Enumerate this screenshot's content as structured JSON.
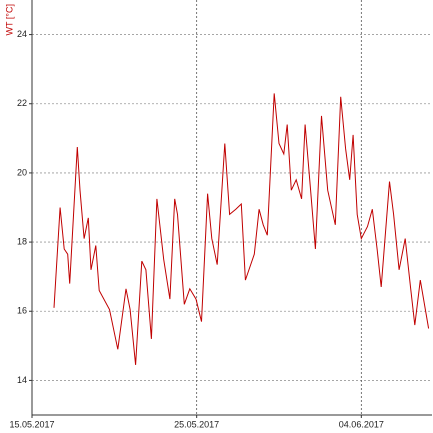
{
  "chart_data": {
    "type": "line",
    "y_label": "WT [°C]",
    "x": [
      "2017-05-16T08:00",
      "2017-05-16T17:00",
      "2017-05-16T23:00",
      "2017-05-17T04:00",
      "2017-05-17T07:00",
      "2017-05-17T18:00",
      "2017-05-17T22:00",
      "2017-05-18T04:00",
      "2017-05-18T10:00",
      "2017-05-18T14:00",
      "2017-05-18T21:00",
      "2017-05-19T02:00",
      "2017-05-19T17:00",
      "2017-05-20T05:00",
      "2017-05-20T17:00",
      "2017-05-20T23:00",
      "2017-05-21T07:00",
      "2017-05-21T16:00",
      "2017-05-21T22:00",
      "2017-05-22T06:00",
      "2017-05-22T14:00",
      "2017-05-23T00:00",
      "2017-05-23T09:00",
      "2017-05-23T16:00",
      "2017-05-23T20:00",
      "2017-05-24T06:00",
      "2017-05-24T14:00",
      "2017-05-24T23:00",
      "2017-05-25T07:00",
      "2017-05-25T16:00",
      "2017-05-25T22:00",
      "2017-05-26T06:00",
      "2017-05-26T17:00",
      "2017-05-27T00:00",
      "2017-05-27T09:00",
      "2017-05-27T17:00",
      "2017-05-27T23:00",
      "2017-05-28T12:00",
      "2017-05-28T19:00",
      "2017-05-29T01:00",
      "2017-05-29T07:00",
      "2017-05-29T17:00",
      "2017-05-30T00:00",
      "2017-05-30T07:00",
      "2017-05-30T12:00",
      "2017-05-30T18:00",
      "2017-05-31T01:00",
      "2017-05-31T09:00",
      "2017-05-31T14:00",
      "2017-05-31T22:00",
      "2017-06-01T05:00",
      "2017-06-01T14:00",
      "2017-06-01T23:00",
      "2017-06-02T10:00",
      "2017-06-02T18:00",
      "2017-06-03T01:00",
      "2017-06-03T07:00",
      "2017-06-03T12:00",
      "2017-06-03T18:00",
      "2017-06-04T00:00",
      "2017-06-04T09:00",
      "2017-06-04T16:00",
      "2017-06-04T23:00",
      "2017-06-05T05:00",
      "2017-06-05T17:00",
      "2017-06-05T23:00",
      "2017-06-06T07:00",
      "2017-06-06T16:00",
      "2017-06-07T00:00",
      "2017-06-07T06:00",
      "2017-06-07T14:00",
      "2017-06-08T02:00"
    ],
    "series": [
      {
        "color": "#c00000",
        "values": [
          16.1,
          19.0,
          17.8,
          17.65,
          16.8,
          20.75,
          19.5,
          18.1,
          18.7,
          17.2,
          17.9,
          16.6,
          16.05,
          14.9,
          16.65,
          16.05,
          14.45,
          17.45,
          17.2,
          15.2,
          19.25,
          17.5,
          16.35,
          19.25,
          18.8,
          16.2,
          16.65,
          16.35,
          15.7,
          19.4,
          18.1,
          17.35,
          20.85,
          18.8,
          18.95,
          19.1,
          16.9,
          17.65,
          18.95,
          18.5,
          18.2,
          22.3,
          20.85,
          20.55,
          21.4,
          19.5,
          19.8,
          19.25,
          21.4,
          19.5,
          17.8,
          21.65,
          19.5,
          18.5,
          22.2,
          20.7,
          19.8,
          21.1,
          18.8,
          18.1,
          18.45,
          18.95,
          17.8,
          16.7,
          19.75,
          18.8,
          17.2,
          18.1,
          16.65,
          15.6,
          16.9,
          15.5
        ]
      }
    ],
    "xlim": [
      "2017-05-15T00:00",
      "2017-06-08T07:00"
    ],
    "xticks": [
      {
        "value": "2017-05-15T00:00",
        "label": "15.05.2017"
      },
      {
        "value": "2017-05-25T00:00",
        "label": "25.05.2017"
      },
      {
        "value": "2017-06-04T00:00",
        "label": "04.06.2017"
      }
    ],
    "ylim": [
      13,
      25
    ],
    "yticks": [
      14,
      16,
      18,
      20,
      22,
      24
    ],
    "grid": true
  }
}
